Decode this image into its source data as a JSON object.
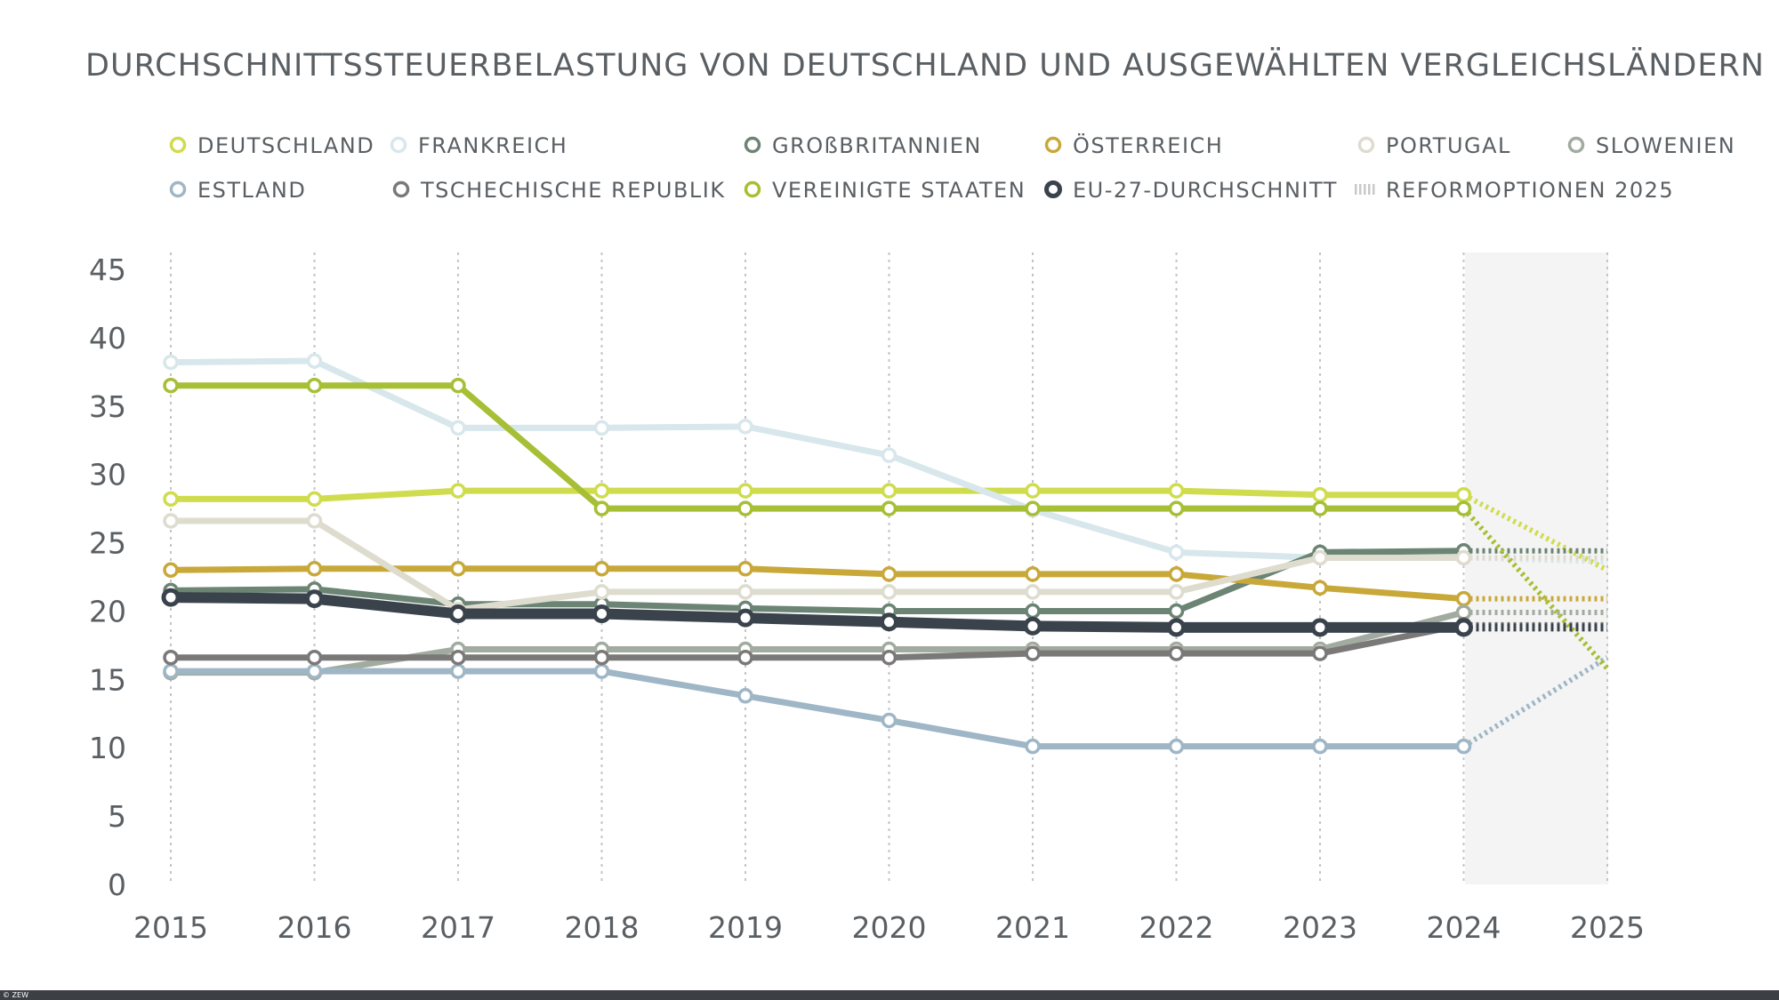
{
  "chart_data": {
    "type": "line",
    "title": "DURCHSCHNITTSSTEUERBELASTUNG VON DEUTSCHLAND UND AUSGEWÄHLTEN VERGLEICHSLÄNDERN",
    "x": [
      2015,
      2016,
      2017,
      2018,
      2019,
      2020,
      2021,
      2022,
      2023,
      2024
    ],
    "x_ticks": [
      "2015",
      "2016",
      "2017",
      "2018",
      "2019",
      "2020",
      "2021",
      "2022",
      "2023",
      "2024",
      "2025"
    ],
    "y_ticks": [
      "0",
      "5",
      "10",
      "15",
      "20",
      "25",
      "30",
      "35",
      "40",
      "45"
    ],
    "ylim": [
      0,
      45
    ],
    "grid": "vertical dotted",
    "legend_placement": "top",
    "reform_year": 2025,
    "reform_label": "REFORMOPTIONEN 2025",
    "series": [
      {
        "name": "DEUTSCHLAND",
        "color": "#cfdc4e",
        "values": [
          28.2,
          28.2,
          28.8,
          28.8,
          28.8,
          28.8,
          28.8,
          28.8,
          28.5,
          28.5
        ],
        "reform": 23.0
      },
      {
        "name": "FRANKREICH",
        "color": "#d8e7ec",
        "values": [
          38.2,
          38.3,
          33.4,
          33.4,
          33.5,
          31.4,
          27.4,
          24.3,
          23.9,
          23.9
        ],
        "reform": 23.6
      },
      {
        "name": "GROßBRITANNIEN",
        "color": "#6b8474",
        "values": [
          21.5,
          21.6,
          20.5,
          20.5,
          20.2,
          20.0,
          20.0,
          20.0,
          24.3,
          24.4
        ],
        "reform": 24.4
      },
      {
        "name": "ÖSTERREICH",
        "color": "#c9a83a",
        "values": [
          23.0,
          23.1,
          23.1,
          23.1,
          23.1,
          22.7,
          22.7,
          22.7,
          21.7,
          20.9
        ],
        "reform": 20.9
      },
      {
        "name": "PORTUGAL",
        "color": "#dedcce",
        "values": [
          26.6,
          26.6,
          20.1,
          21.4,
          21.4,
          21.4,
          21.4,
          21.4,
          23.9,
          23.9
        ],
        "reform": 23.9
      },
      {
        "name": "SLOWENIEN",
        "color": "#a1ab9f",
        "values": [
          15.5,
          15.5,
          17.2,
          17.2,
          17.2,
          17.2,
          17.2,
          17.2,
          17.2,
          19.9
        ],
        "reform": 19.9
      },
      {
        "name": "ESTLAND",
        "color": "#9fb6c6",
        "values": [
          15.6,
          15.6,
          15.6,
          15.6,
          13.8,
          12.0,
          10.1,
          10.1,
          10.1,
          10.1
        ],
        "reform": 16.6
      },
      {
        "name": "TSCHECHISCHE REPUBLIK",
        "color": "#7b7878",
        "values": [
          16.6,
          16.6,
          16.6,
          16.6,
          16.6,
          16.6,
          16.9,
          16.9,
          16.9,
          19.0
        ],
        "reform": 19.0
      },
      {
        "name": "VEREINIGTE STAATEN",
        "color": "#a6bf35",
        "values": [
          36.5,
          36.5,
          36.5,
          27.5,
          27.5,
          27.5,
          27.5,
          27.5,
          27.5,
          27.5
        ],
        "reform": 15.8
      },
      {
        "name": "EU-27-DURCHSCHNITT",
        "color": "#3a434c",
        "values": [
          21.0,
          20.9,
          19.8,
          19.8,
          19.5,
          19.2,
          18.9,
          18.8,
          18.8,
          18.8
        ],
        "reform": 18.8
      }
    ]
  },
  "footer": {
    "credit": "© ZEW"
  }
}
